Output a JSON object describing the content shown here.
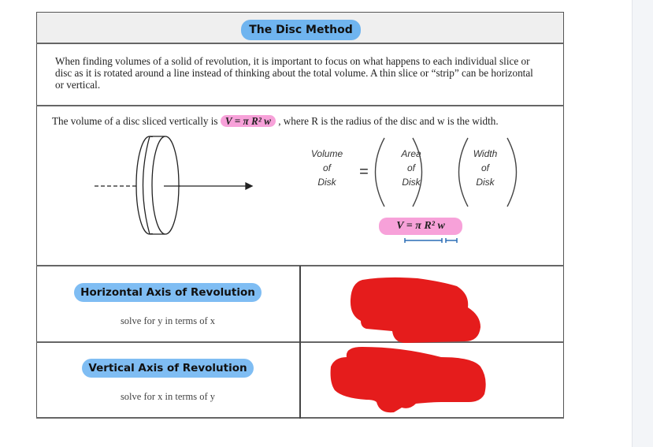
{
  "title": "The Disc Method",
  "intro": "When finding volumes of a solid of revolution, it is important to focus on what happens to each individual slice or disc as it is rotated around a line instead of thinking about the total volume. A thin slice or “strip” can be horizontal or vertical.",
  "disc": {
    "text_before": "The volume of a disc sliced vertically is ",
    "formula": "V =  π R² w",
    "text_after": " , where R is the radius of the disc and w is the width.",
    "equation": {
      "volume": [
        "Volume",
        "of",
        "Disk"
      ],
      "equals": "=",
      "area": [
        "Area",
        "of",
        "Disk"
      ],
      "width": [
        "Width",
        "of",
        "Disk"
      ]
    },
    "formula_repeat": "V =  π R² w"
  },
  "rows": [
    {
      "label": "Horizontal Axis of Revolution",
      "hint": "solve for y in terms of x"
    },
    {
      "label": "Vertical Axis of Revolution",
      "hint": "solve for x in terms of y"
    }
  ],
  "colors": {
    "title_pill": "#6fb4ef",
    "formula_highlight": "#f7a1d9",
    "redaction": "#e51c1c",
    "axis_pill": "#7fbdf3"
  }
}
